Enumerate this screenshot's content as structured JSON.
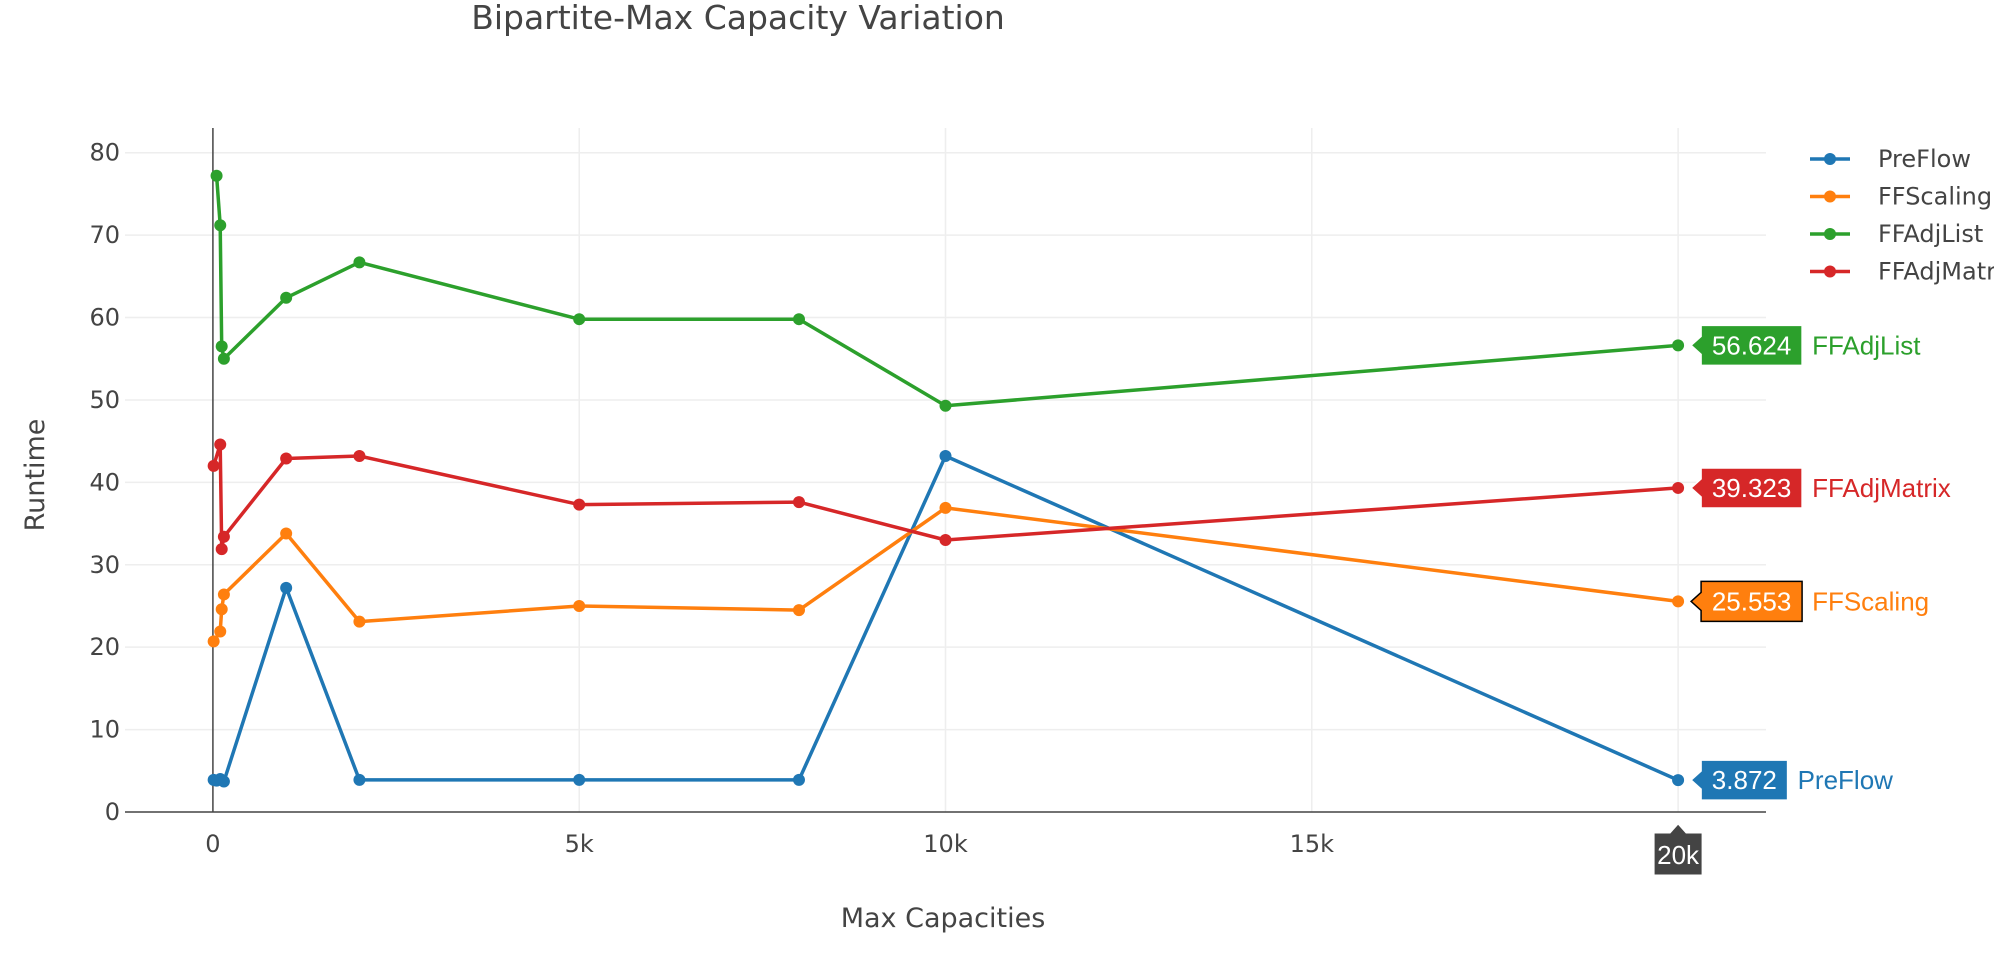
{
  "chart_data": {
    "type": "line",
    "title": "Bipartite-Max Capacity Variation",
    "xlabel": "Max Capacities",
    "ylabel": "Runtime",
    "xlim": [
      -1200,
      21200
    ],
    "ylim": [
      0,
      83
    ],
    "x_ticks": [
      {
        "value": 0,
        "label": "0"
      },
      {
        "value": 5000,
        "label": "5k"
      },
      {
        "value": 10000,
        "label": "10k"
      },
      {
        "value": 15000,
        "label": "15k"
      },
      {
        "value": 20000,
        "label": "20k"
      }
    ],
    "y_ticks": [
      {
        "value": 0,
        "label": "0"
      },
      {
        "value": 10,
        "label": "10"
      },
      {
        "value": 20,
        "label": "20"
      },
      {
        "value": 30,
        "label": "30"
      },
      {
        "value": 40,
        "label": "40"
      },
      {
        "value": 50,
        "label": "50"
      },
      {
        "value": 60,
        "label": "60"
      },
      {
        "value": 70,
        "label": "70"
      },
      {
        "value": 80,
        "label": "80"
      }
    ],
    "grid": true,
    "legend": "top-right",
    "hover_x": 20000,
    "hover_x_label": "20k",
    "series": [
      {
        "name": "PreFlow",
        "color": "#1f77b4",
        "label_text_color": "#ffffff",
        "points": [
          [
            10,
            3.9
          ],
          [
            50,
            3.8
          ],
          [
            100,
            4.0
          ],
          [
            150,
            3.7
          ],
          [
            1000,
            27.2
          ],
          [
            2000,
            3.9
          ],
          [
            5000,
            3.9
          ],
          [
            8000,
            3.9
          ],
          [
            10000,
            43.2
          ],
          [
            20000,
            3.872
          ]
        ],
        "hover_value": "3.872"
      },
      {
        "name": "FFScaling",
        "color": "#ff7f0e",
        "label_text_color": "#000000",
        "points": [
          [
            10,
            20.7
          ],
          [
            100,
            21.9
          ],
          [
            120,
            24.6
          ],
          [
            150,
            26.4
          ],
          [
            1000,
            33.8
          ],
          [
            2000,
            23.1
          ],
          [
            5000,
            25.0
          ],
          [
            8000,
            24.5
          ],
          [
            10000,
            36.9
          ],
          [
            20000,
            25.553
          ]
        ],
        "hover_value": "25.553"
      },
      {
        "name": "FFAdjList",
        "color": "#2ca02c",
        "label_text_color": "#ffffff",
        "points": [
          [
            50,
            77.2
          ],
          [
            100,
            71.2
          ],
          [
            120,
            56.5
          ],
          [
            150,
            55.0
          ],
          [
            1000,
            62.4
          ],
          [
            2000,
            66.7
          ],
          [
            5000,
            59.8
          ],
          [
            8000,
            59.8
          ],
          [
            10000,
            49.3
          ],
          [
            20000,
            56.624
          ]
        ],
        "hover_value": "56.624"
      },
      {
        "name": "FFAdjMatrix",
        "color": "#d62728",
        "label_text_color": "#ffffff",
        "points": [
          [
            10,
            42.0
          ],
          [
            100,
            44.6
          ],
          [
            120,
            31.9
          ],
          [
            150,
            33.4
          ],
          [
            1000,
            42.9
          ],
          [
            2000,
            43.2
          ],
          [
            5000,
            37.3
          ],
          [
            8000,
            37.6
          ],
          [
            10000,
            33.0
          ],
          [
            20000,
            39.323
          ]
        ],
        "hover_value": "39.323"
      }
    ]
  }
}
